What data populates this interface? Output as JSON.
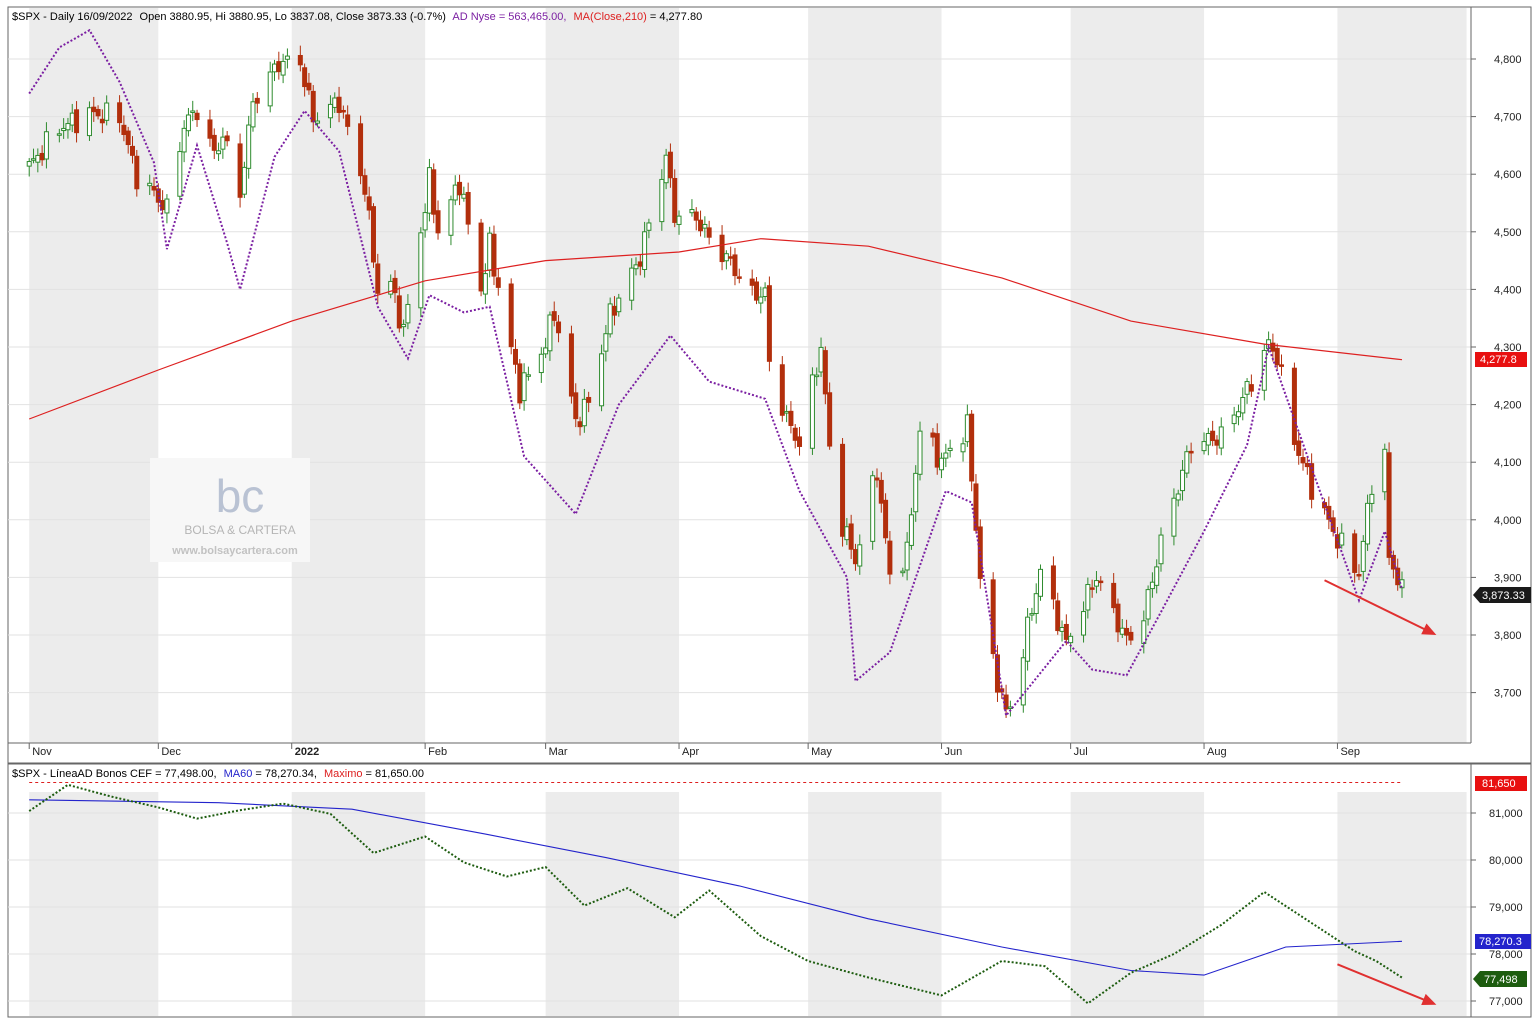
{
  "upper_panel": {
    "header": {
      "symbol": "$SPX - Daily 16/09/2022",
      "ohlc": "Open 3880.95, Hi 3880.95, Lo 3837.08, Close 3873.33 (-0.7%)",
      "ad_label": "AD Nyse = 563,465.00,",
      "ma_label": "MA(Close,210)",
      "ma_value": " = 4,277.80"
    },
    "price_tag": "3,873.33",
    "ma_tag": "4,277.8",
    "watermark": {
      "logo": "bc",
      "name": "BOLSA & CARTERA",
      "url": "www.bolsaycartera.com"
    }
  },
  "lower_panel": {
    "header": {
      "symbol": "$SPX - LíneaAD Bonos CEF = 77,498.00,",
      "ma_label": "MA60",
      "ma_value": " = 78,270.34,",
      "max_label": "Maximo",
      "max_value": " = 81,650.00"
    },
    "max_tag": "81,650",
    "ma_tag": "78,270.3",
    "value_tag": "77,498"
  },
  "colors": {
    "up_candle": "#2e8b2e",
    "down_candle": "#b22f0c",
    "ad_line": "#7b1fa2",
    "ma210": "#dd2020",
    "ad_bonds": "#1d5c0f",
    "ma60": "#2424cc",
    "arrow": "#e03030",
    "shade": "#ececec"
  },
  "chart_data": [
    {
      "type": "candlestick",
      "title": "$SPX - Daily 16/09/2022",
      "y_ticks": [
        "3,700",
        "3,800",
        "3,900",
        "4,000",
        "4,100",
        "4,200",
        "4,300",
        "4,400",
        "4,500",
        "4,600",
        "4,700",
        "4,800"
      ],
      "ylim": [
        3620,
        4880
      ],
      "x_months": [
        "Nov",
        "Dec",
        "2022",
        "Feb",
        "Mar",
        "Apr",
        "May",
        "Jun",
        "Jul",
        "Aug",
        "Sep"
      ],
      "close_path": [
        [
          "2021-11-01",
          4613
        ],
        [
          "2021-11-08",
          4680
        ],
        [
          "2021-11-15",
          4705
        ],
        [
          "2021-11-22",
          4700
        ],
        [
          "2021-11-26",
          4595
        ],
        [
          "2021-11-30",
          4567
        ],
        [
          "2021-12-03",
          4538
        ],
        [
          "2021-12-07",
          4686
        ],
        [
          "2021-12-10",
          4712
        ],
        [
          "2021-12-14",
          4634
        ],
        [
          "2021-12-16",
          4668
        ],
        [
          "2021-12-20",
          4568
        ],
        [
          "2021-12-23",
          4725
        ],
        [
          "2021-12-29",
          4793
        ],
        [
          "2022-01-03",
          4796
        ],
        [
          "2022-01-06",
          4696
        ],
        [
          "2022-01-12",
          4726
        ],
        [
          "2022-01-18",
          4577
        ],
        [
          "2022-01-21",
          4398
        ],
        [
          "2022-01-24",
          4410
        ],
        [
          "2022-01-27",
          4327
        ],
        [
          "2022-02-02",
          4589
        ],
        [
          "2022-02-04",
          4500
        ],
        [
          "2022-02-09",
          4587
        ],
        [
          "2022-02-14",
          4401
        ],
        [
          "2022-02-16",
          4475
        ],
        [
          "2022-02-23",
          4225
        ],
        [
          "2022-03-01",
          4306
        ],
        [
          "2022-03-03",
          4363
        ],
        [
          "2022-03-08",
          4170
        ],
        [
          "2022-03-11",
          4204
        ],
        [
          "2022-03-16",
          4357
        ],
        [
          "2022-03-23",
          4456
        ],
        [
          "2022-03-29",
          4631
        ],
        [
          "2022-03-31",
          4530
        ],
        [
          "2022-04-05",
          4525
        ],
        [
          "2022-04-08",
          4488
        ],
        [
          "2022-04-13",
          4446
        ],
        [
          "2022-04-18",
          4391
        ],
        [
          "2022-04-21",
          4393
        ],
        [
          "2022-04-22",
          4271
        ],
        [
          "2022-04-26",
          4175
        ],
        [
          "2022-04-29",
          4132
        ],
        [
          "2022-05-04",
          4300
        ],
        [
          "2022-05-06",
          4123
        ],
        [
          "2022-05-09",
          3991
        ],
        [
          "2022-05-12",
          3930
        ],
        [
          "2022-05-17",
          4088
        ],
        [
          "2022-05-20",
          3901
        ],
        [
          "2022-05-24",
          3941
        ],
        [
          "2022-05-27",
          4158
        ],
        [
          "2022-06-01",
          4101
        ],
        [
          "2022-06-07",
          4161
        ],
        [
          "2022-06-10",
          3900
        ],
        [
          "2022-06-13",
          3750
        ],
        [
          "2022-06-16",
          3666
        ],
        [
          "2022-06-17",
          3675
        ],
        [
          "2022-06-24",
          3912
        ],
        [
          "2022-06-30",
          3785
        ],
        [
          "2022-07-07",
          3903
        ],
        [
          "2022-07-14",
          3790
        ],
        [
          "2022-07-18",
          3831
        ],
        [
          "2022-07-22",
          3962
        ],
        [
          "2022-07-29",
          4130
        ],
        [
          "2022-08-05",
          4145
        ],
        [
          "2022-08-10",
          4210
        ],
        [
          "2022-08-16",
          4305
        ],
        [
          "2022-08-18",
          4284
        ],
        [
          "2022-08-22",
          4138
        ],
        [
          "2022-08-26",
          4057
        ],
        [
          "2022-09-01",
          3966
        ],
        [
          "2022-09-06",
          3908
        ],
        [
          "2022-09-09",
          4067
        ],
        [
          "2022-09-12",
          4110
        ],
        [
          "2022-09-13",
          3932
        ],
        [
          "2022-09-15",
          3901
        ],
        [
          "2022-09-16",
          3873
        ]
      ],
      "ma210": [
        [
          "2021-11-01",
          4175
        ],
        [
          "2021-12-01",
          4260
        ],
        [
          "2022-01-01",
          4345
        ],
        [
          "2022-02-01",
          4415
        ],
        [
          "2022-03-01",
          4450
        ],
        [
          "2022-04-01",
          4465
        ],
        [
          "2022-04-20",
          4488
        ],
        [
          "2022-05-15",
          4475
        ],
        [
          "2022-06-15",
          4420
        ],
        [
          "2022-07-15",
          4345
        ],
        [
          "2022-08-15",
          4305
        ],
        [
          "2022-09-16",
          4278
        ]
      ],
      "ad_nyse_overlay": [
        [
          "2021-11-01",
          4740
        ],
        [
          "2021-11-08",
          4820
        ],
        [
          "2021-11-15",
          4850
        ],
        [
          "2021-11-22",
          4760
        ],
        [
          "2021-11-30",
          4620
        ],
        [
          "2021-12-03",
          4470
        ],
        [
          "2021-12-10",
          4650
        ],
        [
          "2021-12-17",
          4480
        ],
        [
          "2021-12-20",
          4400
        ],
        [
          "2021-12-28",
          4630
        ],
        [
          "2022-01-04",
          4710
        ],
        [
          "2022-01-12",
          4640
        ],
        [
          "2022-01-21",
          4370
        ],
        [
          "2022-01-28",
          4280
        ],
        [
          "2022-02-02",
          4390
        ],
        [
          "2022-02-10",
          4360
        ],
        [
          "2022-02-16",
          4370
        ],
        [
          "2022-02-24",
          4110
        ],
        [
          "2022-03-08",
          4010
        ],
        [
          "2022-03-18",
          4200
        ],
        [
          "2022-03-30",
          4320
        ],
        [
          "2022-04-08",
          4240
        ],
        [
          "2022-04-21",
          4210
        ],
        [
          "2022-04-29",
          4050
        ],
        [
          "2022-05-10",
          3900
        ],
        [
          "2022-05-12",
          3720
        ],
        [
          "2022-05-20",
          3770
        ],
        [
          "2022-06-02",
          4050
        ],
        [
          "2022-06-08",
          4030
        ],
        [
          "2022-06-16",
          3660
        ],
        [
          "2022-06-30",
          3790
        ],
        [
          "2022-07-06",
          3740
        ],
        [
          "2022-07-14",
          3730
        ],
        [
          "2022-07-22",
          3840
        ],
        [
          "2022-08-01",
          3980
        ],
        [
          "2022-08-11",
          4130
        ],
        [
          "2022-08-16",
          4300
        ],
        [
          "2022-08-26",
          4090
        ],
        [
          "2022-09-06",
          3860
        ],
        [
          "2022-09-12",
          3980
        ],
        [
          "2022-09-16",
          3880
        ]
      ],
      "trend_arrow": [
        [
          "2022-08-29",
          3895
        ],
        [
          "2022-09-24",
          3800
        ]
      ]
    },
    {
      "type": "line",
      "title": "$SPX - LíneaAD Bonos CEF",
      "y_ticks": [
        "77,000",
        "78,000",
        "79,000",
        "80,000",
        "81,000"
      ],
      "ylim": [
        76800,
        82000
      ],
      "series": [
        {
          "name": "LíneaAD Bonos CEF",
          "points": [
            [
              "2021-11-01",
              81040
            ],
            [
              "2021-11-10",
              81600
            ],
            [
              "2021-11-20",
              81350
            ],
            [
              "2021-12-01",
              81120
            ],
            [
              "2021-12-10",
              80880
            ],
            [
              "2021-12-20",
              81060
            ],
            [
              "2021-12-30",
              81200
            ],
            [
              "2022-01-10",
              80980
            ],
            [
              "2022-01-20",
              80150
            ],
            [
              "2022-02-01",
              80500
            ],
            [
              "2022-02-10",
              79950
            ],
            [
              "2022-02-20",
              79650
            ],
            [
              "2022-03-01",
              79850
            ],
            [
              "2022-03-10",
              79030
            ],
            [
              "2022-03-20",
              79400
            ],
            [
              "2022-03-31",
              78780
            ],
            [
              "2022-04-08",
              79350
            ],
            [
              "2022-04-20",
              78380
            ],
            [
              "2022-05-01",
              77850
            ],
            [
              "2022-05-15",
              77500
            ],
            [
              "2022-06-01",
              77120
            ],
            [
              "2022-06-15",
              77850
            ],
            [
              "2022-06-25",
              77740
            ],
            [
              "2022-07-05",
              76950
            ],
            [
              "2022-07-15",
              77600
            ],
            [
              "2022-07-25",
              78000
            ],
            [
              "2022-08-05",
              78620
            ],
            [
              "2022-08-15",
              79320
            ],
            [
              "2022-08-25",
              78720
            ],
            [
              "2022-09-05",
              78060
            ],
            [
              "2022-09-10",
              77850
            ],
            [
              "2022-09-16",
              77498
            ]
          ]
        },
        {
          "name": "MA60",
          "points": [
            [
              "2021-11-01",
              81280
            ],
            [
              "2021-12-15",
              81220
            ],
            [
              "2022-01-15",
              81080
            ],
            [
              "2022-02-15",
              80550
            ],
            [
              "2022-03-15",
              80050
            ],
            [
              "2022-04-15",
              79450
            ],
            [
              "2022-05-15",
              78750
            ],
            [
              "2022-06-15",
              78150
            ],
            [
              "2022-07-15",
              77650
            ],
            [
              "2022-08-01",
              77550
            ],
            [
              "2022-08-20",
              78150
            ],
            [
              "2022-09-16",
              78270
            ]
          ]
        },
        {
          "name": "Maximo",
          "points": [
            [
              "2021-11-01",
              81650
            ],
            [
              "2022-09-16",
              81650
            ]
          ]
        }
      ],
      "trend_arrow": [
        [
          "2022-09-01",
          77780
        ],
        [
          "2022-09-24",
          76920
        ]
      ]
    }
  ]
}
